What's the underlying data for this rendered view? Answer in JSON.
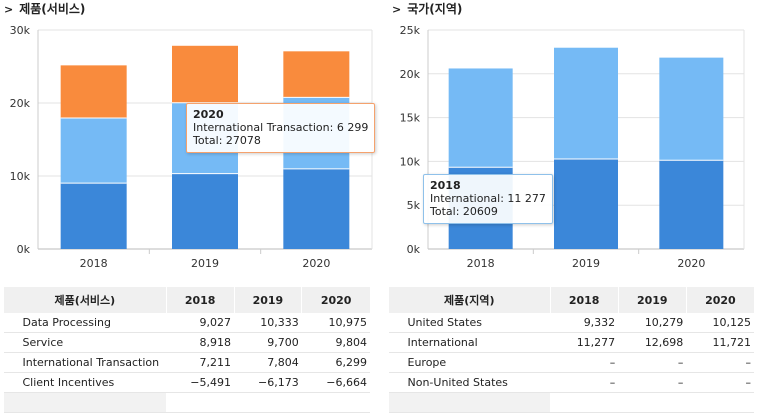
{
  "panels": [
    {
      "title": "제품(서비스)",
      "chart_data": {
        "type": "bar",
        "stacked": true,
        "categories": [
          "2018",
          "2019",
          "2020"
        ],
        "ylim": [
          0,
          30000
        ],
        "yticks": [
          "0k",
          "10k",
          "20k",
          "30k"
        ],
        "series": [
          {
            "values": [
              9027,
              10333,
              10975
            ],
            "color": "#3b87d9"
          },
          {
            "values": [
              8918,
              9700,
              9804
            ],
            "color": "#75baf5"
          },
          {
            "values": [
              7211,
              7804,
              6299
            ],
            "color": "#f98b3d"
          }
        ],
        "title": "",
        "xlabel": "",
        "ylabel": ""
      },
      "tooltip": {
        "category": "2020",
        "line1": "International Transaction: 6 299",
        "line2": "Total: 27078",
        "border": "#f5a26d"
      },
      "table": {
        "header": [
          "제품(서비스)",
          "2018",
          "2019",
          "2020"
        ],
        "rows": [
          [
            "Data Processing",
            "9,027",
            "10,333",
            "10,975"
          ],
          [
            "Service",
            "8,918",
            "9,700",
            "9,804"
          ],
          [
            "International Transaction",
            "7,211",
            "7,804",
            "6,299"
          ],
          [
            "Client Incentives",
            "−5,491",
            "−6,173",
            "−6,664"
          ]
        ]
      }
    },
    {
      "title": "국가(지역)",
      "chart_data": {
        "type": "bar",
        "stacked": true,
        "categories": [
          "2018",
          "2019",
          "2020"
        ],
        "ylim": [
          0,
          25000
        ],
        "yticks": [
          "0k",
          "5k",
          "10k",
          "15k",
          "20k",
          "25k"
        ],
        "series": [
          {
            "values": [
              9332,
              10279,
              10125
            ],
            "color": "#3b87d9"
          },
          {
            "values": [
              11277,
              12698,
              11721
            ],
            "color": "#75baf5"
          }
        ],
        "title": "",
        "xlabel": "",
        "ylabel": ""
      },
      "tooltip": {
        "category": "2018",
        "line1": "International: 11 277",
        "line2": "Total: 20609",
        "border": "#8fc1ea"
      },
      "table": {
        "header": [
          "제품(지역)",
          "2018",
          "2019",
          "2020"
        ],
        "rows": [
          [
            "United States",
            "9,332",
            "10,279",
            "10,125"
          ],
          [
            "International",
            "11,277",
            "12,698",
            "11,721"
          ],
          [
            "Europe",
            "–",
            "–",
            "–"
          ],
          [
            "Non-United States",
            "–",
            "–",
            "–"
          ]
        ]
      }
    }
  ]
}
